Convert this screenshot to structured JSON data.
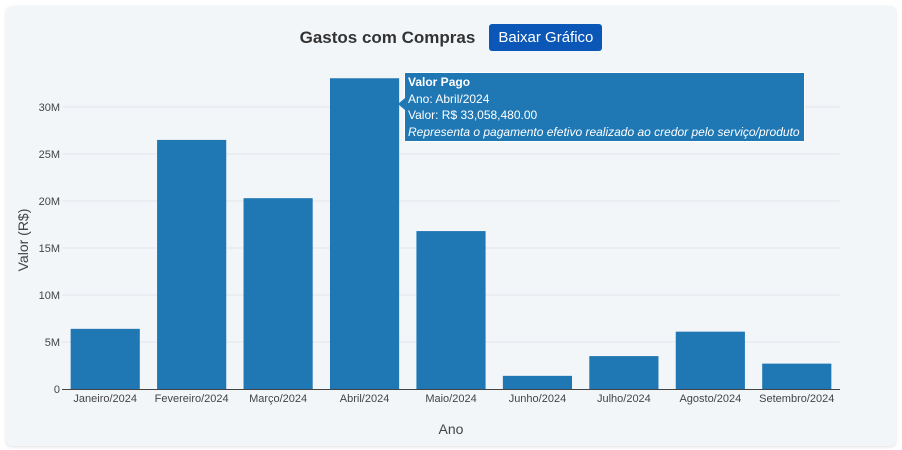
{
  "header": {
    "title": "Gastos com Compras",
    "download_label": "Baixar Gráfico"
  },
  "colors": {
    "bar": "#1f77b4",
    "button": "#0b57b7",
    "background": "#f3f6f9"
  },
  "tooltip": {
    "title": "Valor Pago",
    "line_year": "Ano: Abril/2024",
    "line_value": "Valor: R$ 33,058,480.00",
    "description": "Representa o pagamento efetivo realizado ao credor pelo serviço/produto"
  },
  "chart_data": {
    "type": "bar",
    "categories": [
      "Janeiro/2024",
      "Fevereiro/2024",
      "Março/2024",
      "Abril/2024",
      "Maio/2024",
      "Junho/2024",
      "Julho/2024",
      "Agosto/2024",
      "Setembro/2024"
    ],
    "values": [
      6400000,
      26500000,
      20300000,
      33058480,
      16800000,
      1400000,
      3500000,
      6100000,
      2700000
    ],
    "xlabel": "Ano",
    "ylabel": "Valor (R$)",
    "ylim": [
      0,
      35000000
    ],
    "yticks": [
      0,
      5000000,
      10000000,
      15000000,
      20000000,
      25000000,
      30000000
    ],
    "ytick_labels": [
      "0",
      "5M",
      "10M",
      "15M",
      "20M",
      "25M",
      "30M"
    ],
    "grid": true
  }
}
